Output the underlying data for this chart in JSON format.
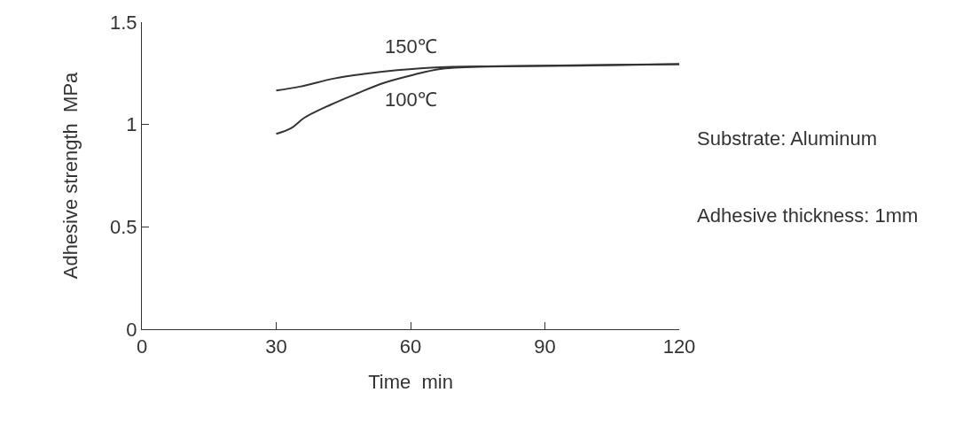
{
  "chart_data": {
    "type": "line",
    "xlabel": "Time  min",
    "ylabel": "Adhesive strength  MPa",
    "xlim": [
      0,
      120
    ],
    "xticks": [
      0,
      30,
      60,
      90,
      120
    ],
    "ylim": [
      0,
      1.5
    ],
    "yticks": [
      0,
      0.5,
      1,
      1.5
    ],
    "legend": false,
    "marker": "none",
    "line_style": "solid",
    "series": [
      {
        "name": "150℃",
        "color": "#333333",
        "x": [
          30,
          35.3,
          43,
          49.6,
          57,
          66.6,
          80,
          100,
          120
        ],
        "values": [
          1.166,
          1.185,
          1.225,
          1.247,
          1.265,
          1.28,
          1.285,
          1.29,
          1.295
        ]
      },
      {
        "name": "100℃",
        "color": "#333333",
        "x": [
          30,
          33.4,
          36.3,
          42.2,
          48.1,
          54,
          60.7,
          66.6,
          75,
          100,
          120
        ],
        "values": [
          0.954,
          0.983,
          1.033,
          1.097,
          1.152,
          1.203,
          1.243,
          1.271,
          1.282,
          1.288,
          1.295
        ]
      }
    ],
    "annotations": [
      "Substrate: Aluminum",
      "Adhesive thickness: 1mm"
    ]
  }
}
